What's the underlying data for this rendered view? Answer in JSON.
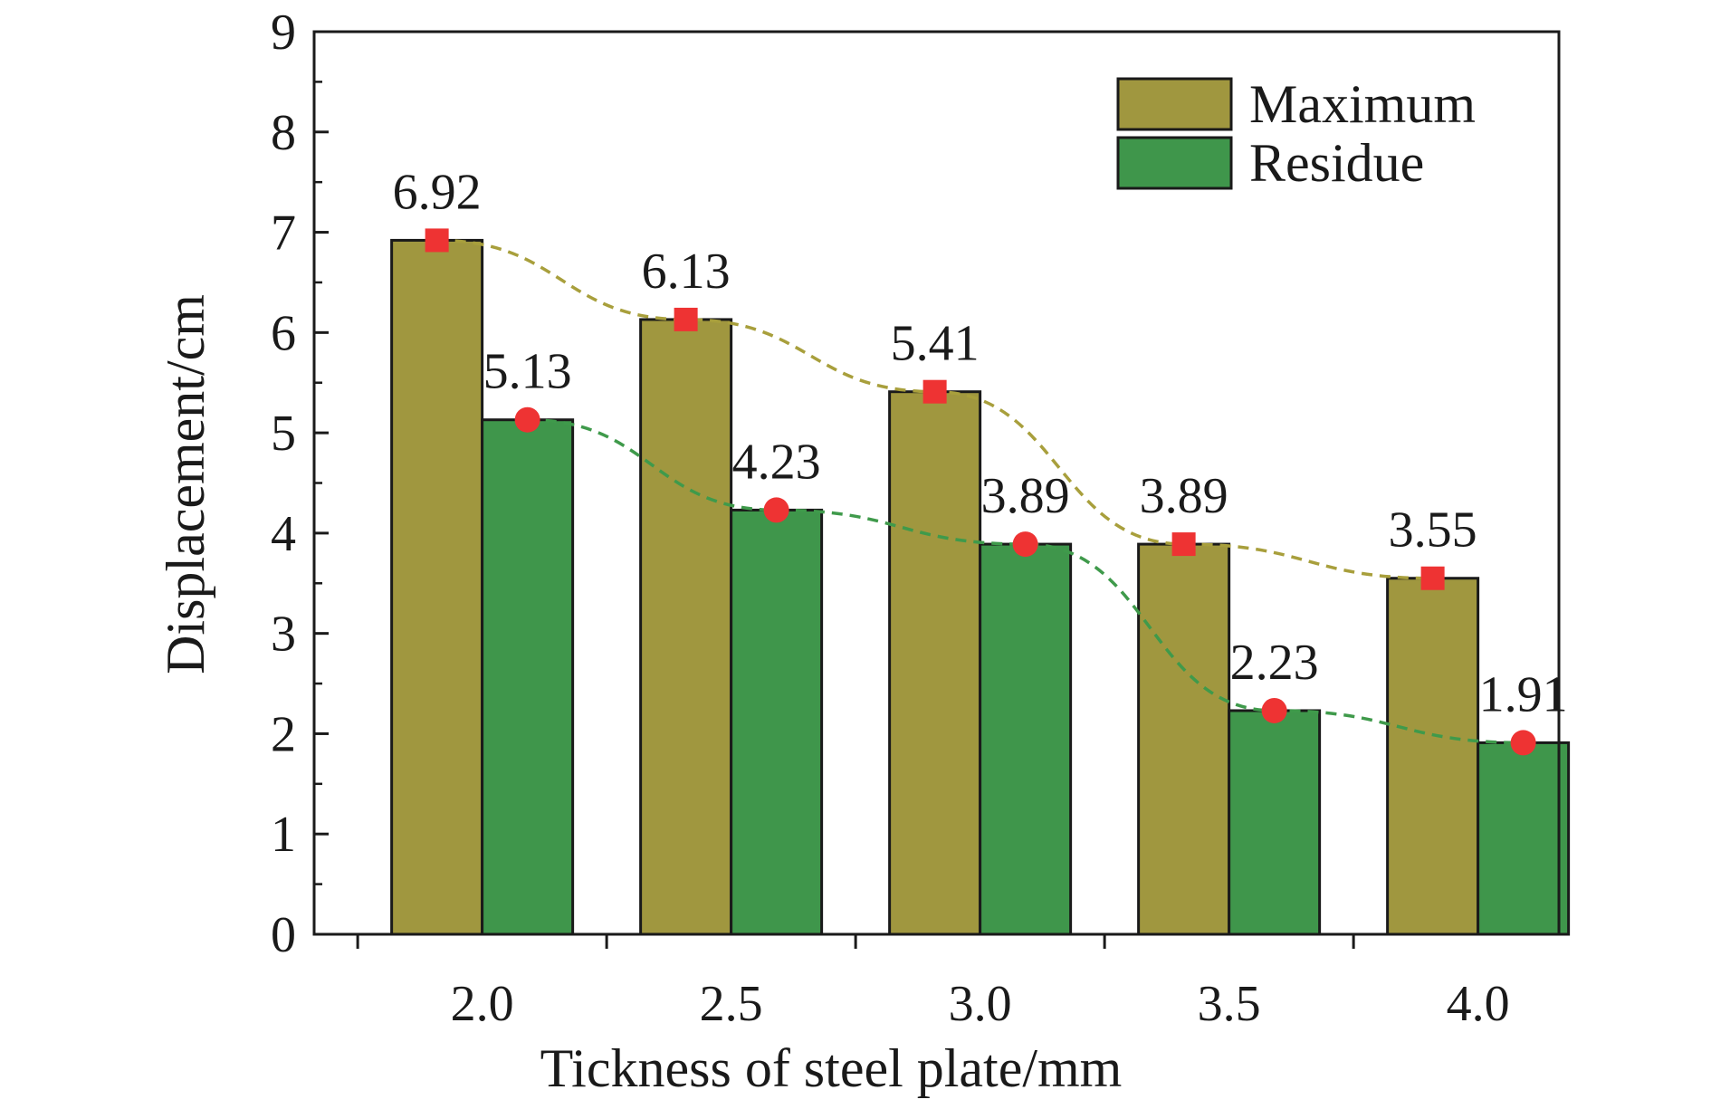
{
  "chart_data": {
    "type": "bar",
    "xlabel": "Tickness of steel plate/mm",
    "ylabel": "Displacement/cm",
    "categories": [
      "2.0",
      "2.5",
      "3.0",
      "3.5",
      "4.0"
    ],
    "ylim": [
      0,
      9
    ],
    "yticks": [
      "0",
      "1",
      "2",
      "3",
      "4",
      "5",
      "6",
      "7",
      "8",
      "9"
    ],
    "legend_position": "top-right",
    "series": [
      {
        "name": "Maximum",
        "values": [
          6.92,
          6.13,
          5.41,
          3.89,
          3.55
        ],
        "labels": [
          "6.92",
          "6.13",
          "5.41",
          "3.89",
          "3.55"
        ],
        "color": "#a0973f",
        "marker": "square",
        "line_color": "#a89f3c"
      },
      {
        "name": "Residue",
        "values": [
          5.13,
          4.23,
          3.89,
          2.23,
          1.91
        ],
        "labels": [
          "5.13",
          "4.23",
          "3.89",
          "2.23",
          "1.91"
        ],
        "color": "#3f964b",
        "marker": "circle",
        "line_color": "#3f9a4b"
      }
    ],
    "marker_color": "#ee3333",
    "trend_lines": "dashed",
    "grid": false
  }
}
